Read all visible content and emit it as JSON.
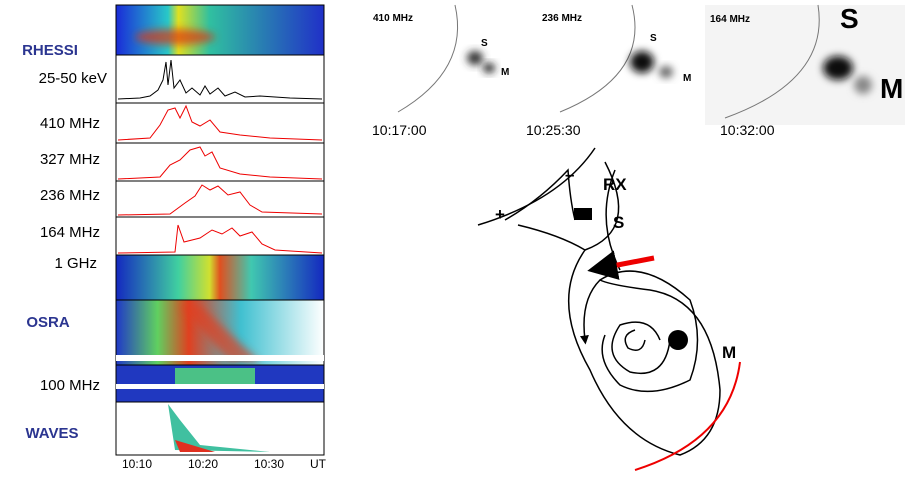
{
  "left_panel": {
    "labels": [
      "RHESSI",
      "25-50 keV",
      "410 MHz",
      "327 MHz",
      "236 MHz",
      "164 MHz",
      "1 GHz",
      "OSRA",
      "100 MHz",
      "WAVES"
    ],
    "time_axis": [
      "10:10",
      "10:20",
      "10:30"
    ],
    "time_unit": "UT"
  },
  "images": [
    {
      "frequency": "410 MHz",
      "time": "10:17:00",
      "source_s": "S",
      "source_m": "M"
    },
    {
      "frequency": "236 MHz",
      "time": "10:25:30",
      "source_s": "S",
      "source_m": "M"
    },
    {
      "frequency": "164 MHz",
      "time": "10:32:00",
      "source_s": "S",
      "source_m": "M"
    }
  ],
  "diagram": {
    "minus": "–",
    "plus": "+",
    "rx": "RX",
    "s": "S",
    "m": "M"
  }
}
